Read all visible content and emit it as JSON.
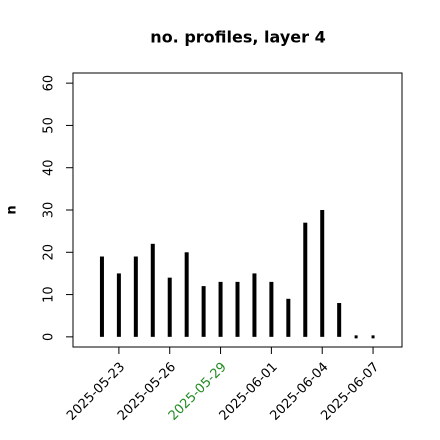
{
  "chart_data": {
    "type": "bar",
    "title": "no. profiles, layer 4",
    "ylabel": "n",
    "x": [
      "2025-05-22",
      "2025-05-23",
      "2025-05-24",
      "2025-05-25",
      "2025-05-26",
      "2025-05-27",
      "2025-05-28",
      "2025-05-29",
      "2025-05-30",
      "2025-05-31",
      "2025-06-01",
      "2025-06-02",
      "2025-06-03",
      "2025-06-04",
      "2025-06-05",
      "2025-06-06",
      "2025-06-07"
    ],
    "values": [
      19,
      15,
      19,
      22,
      14,
      20,
      12,
      13,
      13,
      15,
      13,
      9,
      27,
      30,
      8,
      0,
      0
    ],
    "color": "#000000",
    "xlim": [
      "2025-05-20T07:00",
      "2025-06-08T17:00"
    ],
    "xticks": [
      "2025-05-23",
      "2025-05-26",
      "2025-05-29",
      "2025-06-01",
      "2025-06-04",
      "2025-06-07"
    ],
    "xtick_label_colors": [
      "#000000",
      "#000000",
      "#228b22",
      "#000000",
      "#000000",
      "#000000"
    ],
    "ylim": [
      -2.4,
      62.4
    ],
    "yticks": [
      0,
      10,
      20,
      30,
      40,
      50,
      60
    ]
  }
}
